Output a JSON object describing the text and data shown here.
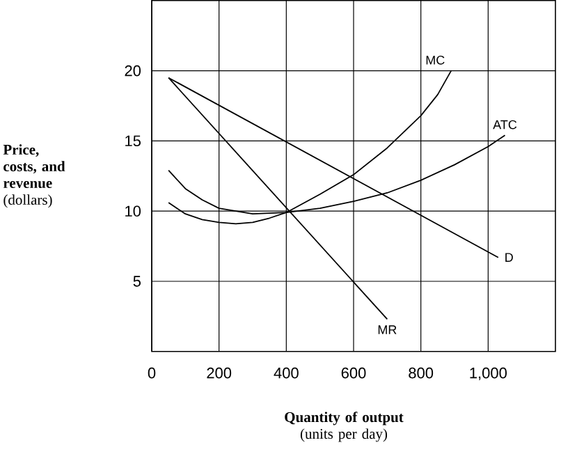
{
  "chart_data": {
    "type": "line",
    "xlabel": "**Quantity of output** (units per day)",
    "ylabel": "**Price, costs, and revenue** (dollars)",
    "xlim": [
      0,
      1200
    ],
    "ylim": [
      0,
      25
    ],
    "xticks": [
      0,
      200,
      400,
      600,
      {
        "value": 800,
        "label": "800"
      },
      {
        "value": 1000,
        "label": "1,000"
      }
    ],
    "yticks": [
      5,
      10,
      15,
      20
    ],
    "grid": true,
    "marker": "none",
    "line_style": "solid",
    "series": [
      {
        "name": "MC",
        "color": "#000000",
        "x": [
          50,
          100,
          150,
          200,
          250,
          300,
          350,
          400,
          500,
          600,
          700,
          800,
          850,
          890
        ],
        "values": [
          10.6,
          9.8,
          9.4,
          9.2,
          9.1,
          9.2,
          9.5,
          9.9,
          11.2,
          12.6,
          14.5,
          16.8,
          18.3,
          20
        ]
      },
      {
        "name": "ATC",
        "color": "#000000",
        "x": [
          50,
          100,
          150,
          200,
          300,
          400,
          500,
          600,
          700,
          800,
          900,
          1000,
          1050
        ],
        "values": [
          12.9,
          11.6,
          10.8,
          10.2,
          9.8,
          9.9,
          10.2,
          10.7,
          11.3,
          12.2,
          13.3,
          14.6,
          15.4
        ]
      },
      {
        "name": "D",
        "color": "#000000",
        "x": [
          50,
          1030
        ],
        "values": [
          19.5,
          6.7
        ]
      },
      {
        "name": "MR",
        "color": "#000000",
        "x": [
          50,
          700
        ],
        "values": [
          19.5,
          2.3
        ]
      }
    ]
  }
}
